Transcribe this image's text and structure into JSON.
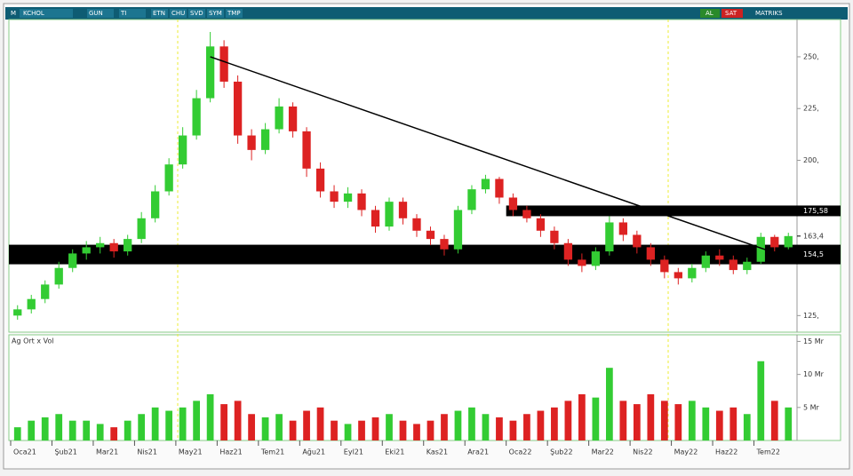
{
  "toolbar": {
    "menu": "M",
    "symbol": "KCHOL",
    "buttons": [
      "GUN",
      "TI",
      "ETN",
      "CHU",
      "SVD",
      "SYM",
      "TMP"
    ],
    "buy": "AL",
    "sell": "SAT",
    "brand": "MATRIKS"
  },
  "chart_data": [
    {
      "type": "candlestick",
      "x_labels": [
        "Oca21",
        "Şub21",
        "Mar21",
        "Nis21",
        "May21",
        "Haz21",
        "Tem21",
        "Ağu21",
        "Eyl21",
        "Eki21",
        "Kas21",
        "Ara21",
        "Oca22",
        "Şub22",
        "Mar22",
        "Nis22",
        "May22",
        "Haz22",
        "Tem22"
      ],
      "open": [
        125,
        128,
        133,
        140,
        148,
        155,
        158,
        160,
        156,
        162,
        172,
        185,
        198,
        212,
        230,
        255,
        238,
        212,
        205,
        215,
        226,
        214,
        196,
        185,
        180,
        184,
        176,
        168,
        180,
        172,
        166,
        162,
        157,
        176,
        186,
        191,
        182,
        176,
        172,
        166,
        160,
        152,
        149,
        156,
        170,
        164,
        158,
        152,
        146,
        143,
        148,
        154,
        152,
        147,
        151,
        163,
        158
      ],
      "high": [
        130,
        135,
        142,
        151,
        157,
        161,
        163,
        162,
        164,
        175,
        188,
        201,
        216,
        234,
        262,
        258,
        241,
        215,
        218,
        230,
        228,
        216,
        199,
        188,
        187,
        186,
        178,
        182,
        182,
        174,
        168,
        164,
        178,
        188,
        193,
        192,
        184,
        178,
        174,
        168,
        162,
        155,
        158,
        173,
        172,
        166,
        160,
        154,
        148,
        150,
        156,
        157,
        154,
        153,
        165,
        164,
        165
      ],
      "low": [
        123,
        126,
        131,
        138,
        146,
        152,
        155,
        153,
        154,
        160,
        170,
        183,
        196,
        210,
        228,
        235,
        208,
        200,
        203,
        213,
        211,
        192,
        182,
        177,
        177,
        173,
        165,
        166,
        169,
        163,
        159,
        154,
        155,
        174,
        184,
        179,
        173,
        170,
        163,
        157,
        149,
        146,
        147,
        154,
        161,
        155,
        149,
        143,
        140,
        141,
        146,
        149,
        145,
        145,
        150,
        156,
        157
      ],
      "close": [
        128,
        133,
        140,
        148,
        155,
        158,
        160,
        156,
        162,
        172,
        185,
        198,
        212,
        230,
        255,
        238,
        212,
        205,
        215,
        226,
        214,
        196,
        185,
        180,
        184,
        176,
        168,
        180,
        172,
        166,
        162,
        157,
        176,
        186,
        191,
        182,
        176,
        172,
        166,
        160,
        152,
        149,
        156,
        170,
        164,
        158,
        152,
        146,
        143,
        148,
        154,
        152,
        147,
        151,
        163,
        158,
        163.4
      ],
      "up_color": "#33cc33",
      "down_color": "#dd2222",
      "ylim": [
        117,
        268
      ],
      "yticks": [
        {
          "value": 250,
          "label": "250,"
        },
        {
          "value": 225,
          "label": "225,"
        },
        {
          "value": 200,
          "label": "200,"
        },
        {
          "value": 125,
          "label": "125,"
        }
      ],
      "levels": [
        {
          "value": 175.58,
          "label": "175,58"
        },
        {
          "value": 154.5,
          "label": "154,5"
        }
      ],
      "current_price": {
        "value": 163.4,
        "label": "163,4"
      },
      "trendline": {
        "x": [
          14,
          56
        ],
        "y": [
          250,
          153
        ]
      }
    },
    {
      "type": "bar",
      "title": "Ag Ort x Vol",
      "values": [
        2,
        3,
        3.5,
        4,
        3,
        3,
        2.5,
        2,
        3,
        4,
        5,
        4.5,
        5,
        6,
        7,
        5.5,
        6,
        4,
        3.5,
        4,
        3,
        4.5,
        5,
        3,
        2.5,
        3,
        3.5,
        4,
        3,
        2.5,
        3,
        4,
        4.5,
        5,
        4,
        3.5,
        3,
        4,
        4.5,
        5,
        6,
        7,
        6.5,
        11,
        6,
        5.5,
        7,
        6,
        5.5,
        6,
        5,
        4.5,
        5,
        4,
        12,
        6,
        5
      ],
      "ylim": [
        0,
        16
      ],
      "yticks": [
        {
          "value": 15,
          "label": "15 Mr"
        },
        {
          "value": 10,
          "label": "10 Mr"
        },
        {
          "value": 5,
          "label": "5 Mr"
        }
      ]
    }
  ]
}
